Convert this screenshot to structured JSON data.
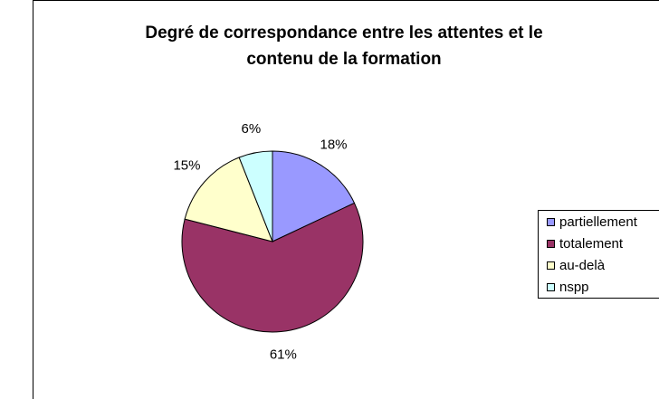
{
  "chart_data": {
    "type": "pie",
    "title": [
      "Degré de correspondance entre les attentes et le",
      "contenu de la formation"
    ],
    "categories": [
      "partiellement",
      "totalement",
      "au-delà",
      "nspp"
    ],
    "values": [
      18,
      61,
      15,
      6
    ],
    "value_labels": [
      "18%",
      "61%",
      "15%",
      "6%"
    ],
    "colors": [
      "#9999ff",
      "#993366",
      "#ffffcc",
      "#ccffff"
    ],
    "legend": "right"
  }
}
